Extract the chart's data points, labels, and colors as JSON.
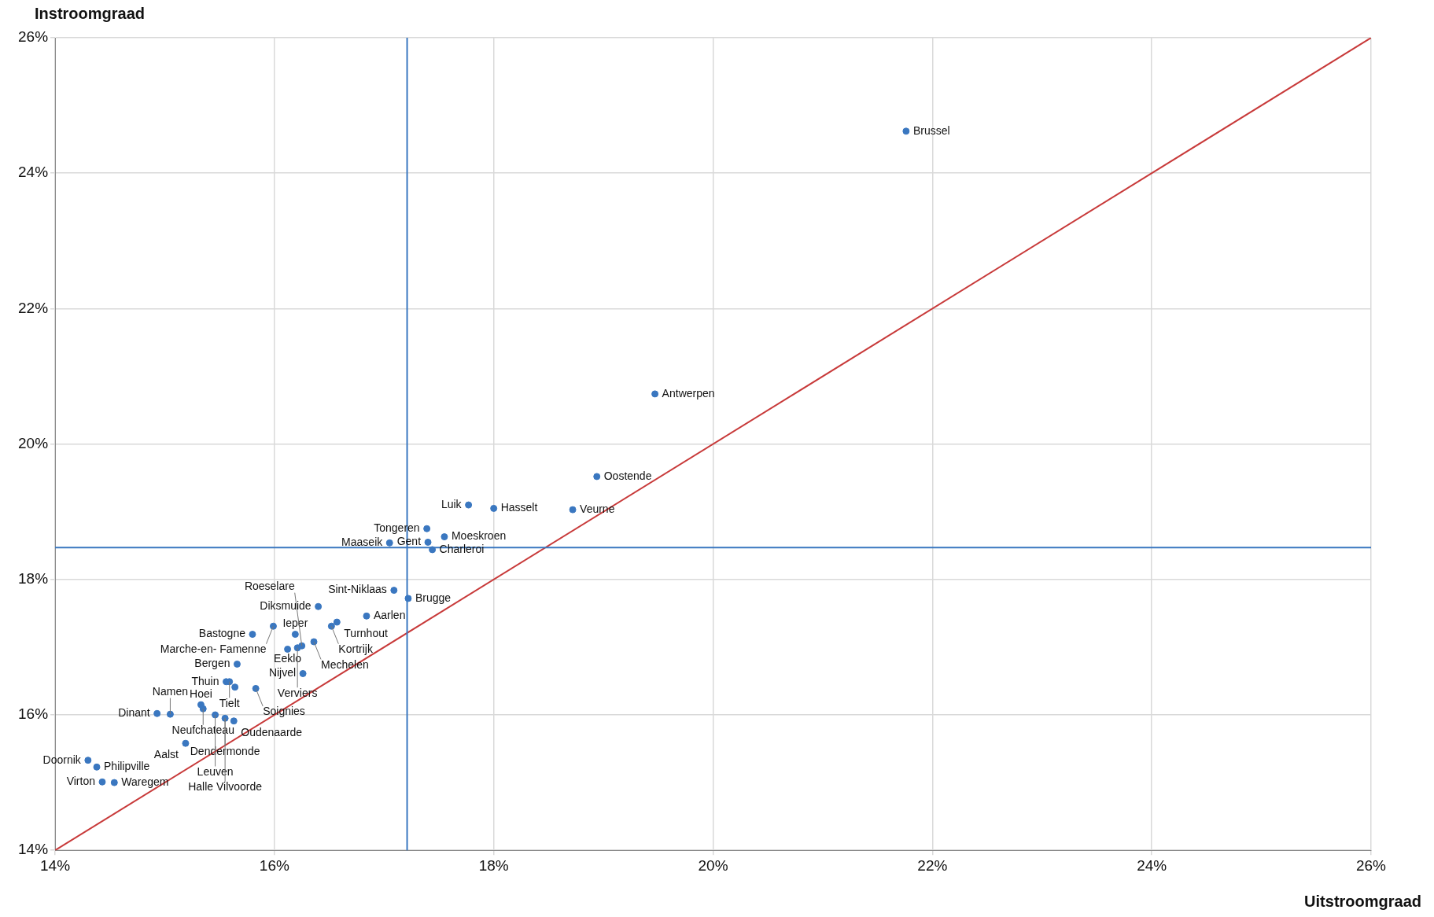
{
  "chart_data": {
    "type": "scatter",
    "xlabel": "Uitstroomgraad",
    "ylabel": "Instroomgraad",
    "xlim": [
      14,
      26
    ],
    "ylim": [
      14,
      26
    ],
    "xticks": [
      {
        "value": 14,
        "label": "14%"
      },
      {
        "value": 16,
        "label": "16%"
      },
      {
        "value": 18,
        "label": "18%"
      },
      {
        "value": 20,
        "label": "20%"
      },
      {
        "value": 22,
        "label": "22%"
      },
      {
        "value": 24,
        "label": "24%"
      },
      {
        "value": 26,
        "label": "26%"
      }
    ],
    "yticks": [
      {
        "value": 14,
        "label": "14%"
      },
      {
        "value": 16,
        "label": "16%"
      },
      {
        "value": 18,
        "label": "18%"
      },
      {
        "value": 20,
        "label": "20%"
      },
      {
        "value": 22,
        "label": "22%"
      },
      {
        "value": 24,
        "label": "24%"
      },
      {
        "value": 26,
        "label": "26%"
      }
    ],
    "grid": true,
    "marker": "circle",
    "series": [
      {
        "type": "scatter",
        "color": "#3a77c0",
        "x": [
          21.76,
          19.47,
          18.94,
          18.72,
          18.0,
          17.77,
          17.39,
          17.4,
          17.55,
          17.44,
          17.05,
          17.09,
          17.22,
          16.4,
          16.57,
          16.52,
          16.84,
          16.19,
          15.99,
          15.8,
          16.36,
          16.12,
          16.21,
          16.25,
          15.66,
          16.26,
          15.56,
          15.59,
          15.64,
          15.83,
          15.33,
          15.35,
          14.93,
          15.05,
          15.46,
          15.55,
          15.63,
          15.19,
          14.3,
          14.38,
          14.43,
          14.54
        ],
        "values": [
          24.62,
          20.74,
          19.52,
          19.03,
          19.05,
          19.1,
          18.75,
          18.55,
          18.63,
          18.44,
          18.54,
          17.84,
          17.72,
          17.6,
          17.37,
          17.31,
          17.46,
          17.19,
          17.31,
          17.19,
          17.08,
          16.97,
          16.99,
          17.02,
          16.75,
          16.61,
          16.49,
          16.49,
          16.41,
          16.39,
          16.15,
          16.09,
          16.02,
          16.01,
          16.0,
          15.95,
          15.91,
          15.58,
          15.33,
          15.23,
          15.01,
          15.0
        ]
      },
      {
        "type": "line",
        "color": "#c83a3a",
        "x": [
          14,
          26
        ],
        "values": [
          14,
          26
        ],
        "marker": "none"
      }
    ],
    "ref_lines": [
      {
        "axis": "x",
        "value": 17.21,
        "color": "#3a77c0"
      },
      {
        "axis": "y",
        "value": 18.47,
        "color": "#3a77c0"
      }
    ],
    "annotations": [
      {
        "text": "Brussel",
        "x": 21.76,
        "y": 24.62
      },
      {
        "text": "Antwerpen",
        "x": 19.47,
        "y": 20.74
      },
      {
        "text": "Oostende",
        "x": 18.94,
        "y": 19.52
      },
      {
        "text": "Veurne",
        "x": 18.72,
        "y": 19.03
      },
      {
        "text": "Hasselt",
        "x": 18.0,
        "y": 19.05
      },
      {
        "text": "Luik",
        "x": 17.77,
        "y": 19.1
      },
      {
        "text": "Tongeren",
        "x": 17.39,
        "y": 18.75
      },
      {
        "text": "Gent",
        "x": 17.4,
        "y": 18.55
      },
      {
        "text": "Moeskroen",
        "x": 17.55,
        "y": 18.63
      },
      {
        "text": "Charleroi",
        "x": 17.44,
        "y": 18.44
      },
      {
        "text": "Maaseik",
        "x": 17.05,
        "y": 18.54
      },
      {
        "text": "Sint-Niklaas",
        "x": 17.09,
        "y": 17.84
      },
      {
        "text": "Brugge",
        "x": 17.22,
        "y": 17.72
      },
      {
        "text": "Diksmuide",
        "x": 16.4,
        "y": 17.6
      },
      {
        "text": "Turnhout",
        "x": 16.57,
        "y": 17.37
      },
      {
        "text": "Kortrijk",
        "x": 16.52,
        "y": 17.31
      },
      {
        "text": "Aarlen",
        "x": 16.84,
        "y": 17.46
      },
      {
        "text": "Ieper",
        "x": 16.19,
        "y": 17.19
      },
      {
        "text": "Marche-en- Famenne",
        "x": 15.99,
        "y": 17.31
      },
      {
        "text": "Bastogne",
        "x": 15.8,
        "y": 17.19
      },
      {
        "text": "Mechelen",
        "x": 16.36,
        "y": 17.08
      },
      {
        "text": "Eeklo",
        "x": 16.12,
        "y": 16.97
      },
      {
        "text": "Verviers",
        "x": 16.21,
        "y": 16.99
      },
      {
        "text": "Roeselare",
        "x": 16.25,
        "y": 17.02
      },
      {
        "text": "Bergen",
        "x": 15.66,
        "y": 16.75
      },
      {
        "text": "Nijvel",
        "x": 16.26,
        "y": 16.61
      },
      {
        "text": "Thuin",
        "x": 15.56,
        "y": 16.49
      },
      {
        "text": "Tielt",
        "x": 15.59,
        "y": 16.49
      },
      {
        "text": "Soignies",
        "x": 15.83,
        "y": 16.39
      },
      {
        "text": "Hoei",
        "x": 15.33,
        "y": 16.15
      },
      {
        "text": "Neufchateau",
        "x": 15.35,
        "y": 16.09
      },
      {
        "text": "Dendermonde",
        "x": 15.55,
        "y": 15.95
      },
      {
        "text": "Dinant",
        "x": 14.93,
        "y": 16.02
      },
      {
        "text": "Namen",
        "x": 15.05,
        "y": 16.01
      },
      {
        "text": "Leuven",
        "x": 15.46,
        "y": 16.0
      },
      {
        "text": "Halle Vilvoorde",
        "x": 15.55,
        "y": 15.95
      },
      {
        "text": "Oudenaarde",
        "x": 15.63,
        "y": 15.91
      },
      {
        "text": "Aalst",
        "x": 15.19,
        "y": 15.58
      },
      {
        "text": "Doornik",
        "x": 14.3,
        "y": 15.33
      },
      {
        "text": "Philipville",
        "x": 14.38,
        "y": 15.23
      },
      {
        "text": "Virton",
        "x": 14.43,
        "y": 15.01
      },
      {
        "text": "Waregem",
        "x": 14.54,
        "y": 15.0
      }
    ]
  }
}
